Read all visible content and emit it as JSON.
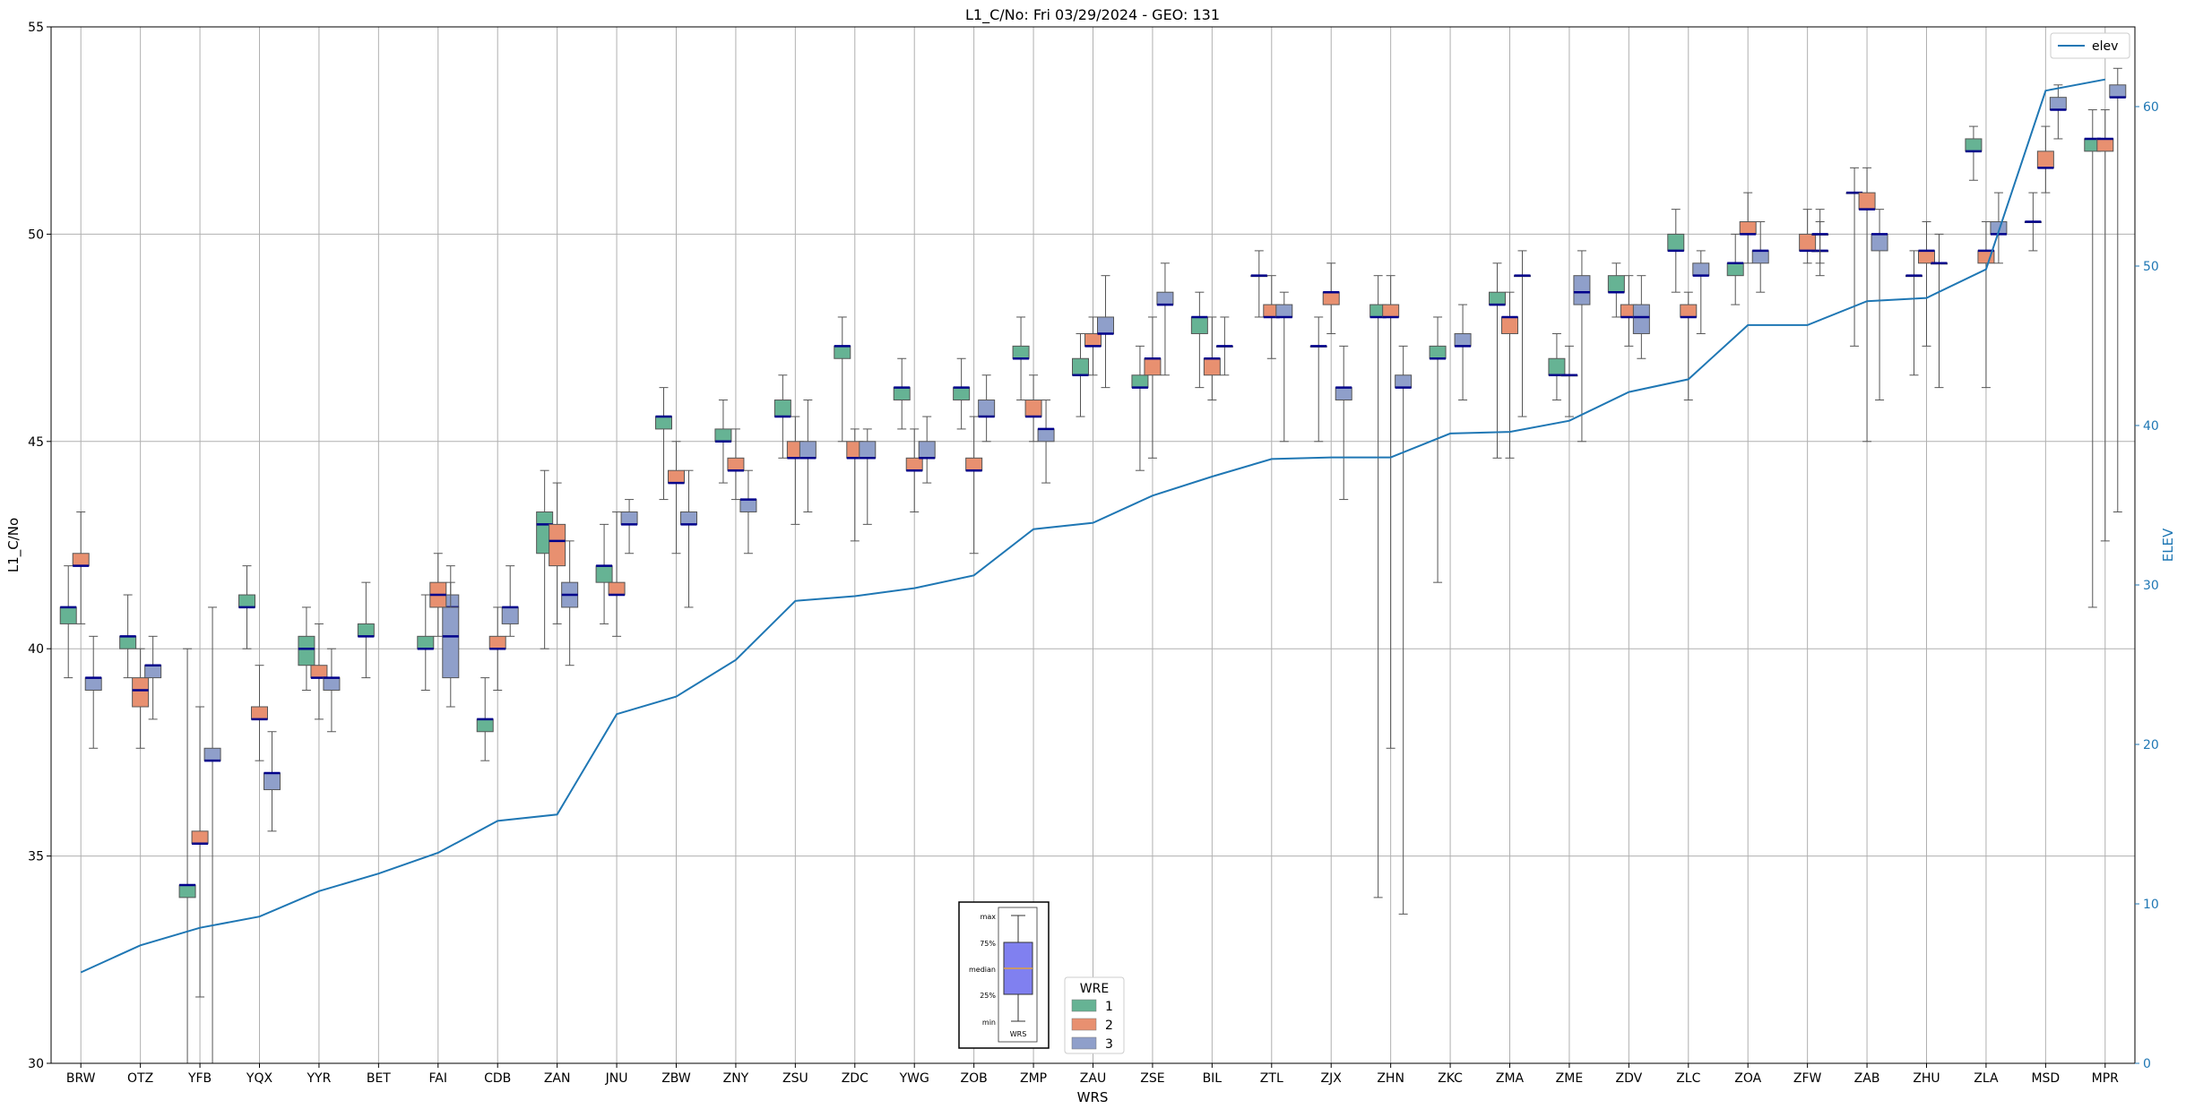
{
  "chart_data": {
    "type": "box",
    "title": "L1_C/No: Fri 03/29/2024 - GEO: 131",
    "xlabel": "WRS",
    "ylabel": "L1_C/No",
    "y2label": "ELEV",
    "ylim": [
      30,
      55
    ],
    "y2lim": [
      0,
      65
    ],
    "yticks": [
      30,
      35,
      40,
      45,
      50,
      55
    ],
    "y2ticks": [
      0,
      10,
      20,
      30,
      40,
      50,
      60
    ],
    "grid": true,
    "categories": [
      "BRW",
      "OTZ",
      "YFB",
      "YQX",
      "YYR",
      "BET",
      "FAI",
      "CDB",
      "ZAN",
      "JNU",
      "ZBW",
      "ZNY",
      "ZSU",
      "ZDC",
      "YWG",
      "ZOB",
      "ZMP",
      "ZAU",
      "ZSE",
      "BIL",
      "ZTL",
      "ZJX",
      "ZHN",
      "ZKC",
      "ZMA",
      "ZME",
      "ZDV",
      "ZLC",
      "ZOA",
      "ZFW",
      "ZAB",
      "ZHU",
      "ZLA",
      "MSD",
      "MPR"
    ],
    "wre_legend": {
      "title": "WRE",
      "entries": [
        {
          "label": "1",
          "color": "#66b394"
        },
        {
          "label": "2",
          "color": "#e89070"
        },
        {
          "label": "3",
          "color": "#8f9fca"
        }
      ]
    },
    "line_legend": {
      "label": "elev",
      "color": "#1f77b4"
    },
    "elev": [
      5.7,
      7.4,
      8.5,
      9.2,
      10.8,
      11.9,
      13.2,
      15.2,
      15.6,
      21.9,
      23.0,
      25.3,
      29.0,
      29.3,
      29.8,
      30.6,
      33.5,
      33.9,
      35.6,
      36.8,
      37.9,
      38.0,
      38.0,
      39.5,
      39.6,
      40.3,
      42.1,
      42.9,
      46.3,
      46.3,
      47.8,
      48.0,
      49.8,
      61.0,
      61.7
    ],
    "boxes": [
      {
        "cat": "BRW",
        "wre": 1,
        "min": 39.3,
        "q1": 40.6,
        "med": 41.0,
        "q3": 41.0,
        "max": 42.0
      },
      {
        "cat": "BRW",
        "wre": 2,
        "min": 40.6,
        "q1": 42.0,
        "med": 42.0,
        "q3": 42.3,
        "max": 43.3
      },
      {
        "cat": "BRW",
        "wre": 3,
        "min": 37.6,
        "q1": 39.0,
        "med": 39.3,
        "q3": 39.3,
        "max": 40.3
      },
      {
        "cat": "OTZ",
        "wre": 1,
        "min": 39.3,
        "q1": 40.0,
        "med": 40.3,
        "q3": 40.3,
        "max": 41.3
      },
      {
        "cat": "OTZ",
        "wre": 2,
        "min": 37.6,
        "q1": 38.6,
        "med": 39.0,
        "q3": 39.3,
        "max": 40.0
      },
      {
        "cat": "OTZ",
        "wre": 3,
        "min": 38.3,
        "q1": 39.3,
        "med": 39.6,
        "q3": 39.6,
        "max": 40.3
      },
      {
        "cat": "YFB",
        "wre": 1,
        "min": 30.0,
        "q1": 34.0,
        "med": 34.3,
        "q3": 34.3,
        "max": 40.0
      },
      {
        "cat": "YFB",
        "wre": 2,
        "min": 31.6,
        "q1": 35.3,
        "med": 35.3,
        "q3": 35.6,
        "max": 38.6
      },
      {
        "cat": "YFB",
        "wre": 3,
        "min": 30.0,
        "q1": 37.3,
        "med": 37.3,
        "q3": 37.6,
        "max": 41.0
      },
      {
        "cat": "YQX",
        "wre": 1,
        "min": 40.0,
        "q1": 41.0,
        "med": 41.0,
        "q3": 41.3,
        "max": 42.0
      },
      {
        "cat": "YQX",
        "wre": 2,
        "min": 37.3,
        "q1": 38.3,
        "med": 38.3,
        "q3": 38.6,
        "max": 39.6
      },
      {
        "cat": "YQX",
        "wre": 3,
        "min": 35.6,
        "q1": 36.6,
        "med": 37.0,
        "q3": 37.0,
        "max": 38.0
      },
      {
        "cat": "YYR",
        "wre": 1,
        "min": 39.0,
        "q1": 39.6,
        "med": 40.0,
        "q3": 40.3,
        "max": 41.0
      },
      {
        "cat": "YYR",
        "wre": 2,
        "min": 38.3,
        "q1": 39.3,
        "med": 39.3,
        "q3": 39.6,
        "max": 40.6
      },
      {
        "cat": "YYR",
        "wre": 3,
        "min": 38.0,
        "q1": 39.0,
        "med": 39.3,
        "q3": 39.3,
        "max": 40.0
      },
      {
        "cat": "BET",
        "wre": 1,
        "min": 39.3,
        "q1": 40.3,
        "med": 40.3,
        "q3": 40.6,
        "max": 41.6
      },
      {
        "cat": "FAI",
        "wre": 3,
        "min": 40.3,
        "q1": 41.0,
        "med": 41.0,
        "q3": 41.3,
        "max": 42.0
      },
      {
        "cat": "FAI",
        "wre": 1,
        "min": 39.0,
        "q1": 40.0,
        "med": 40.0,
        "q3": 40.3,
        "max": 41.3
      },
      {
        "cat": "FAI",
        "wre": 2,
        "min": 40.3,
        "q1": 41.0,
        "med": 41.3,
        "q3": 41.6,
        "max": 42.3
      },
      {
        "cat": "FAI",
        "wre": 3,
        "min": 38.6,
        "q1": 39.3,
        "med": 40.3,
        "q3": 41.0,
        "max": 41.6
      },
      {
        "cat": "CDB",
        "wre": 1,
        "min": 37.3,
        "q1": 38.0,
        "med": 38.3,
        "q3": 38.3,
        "max": 39.3
      },
      {
        "cat": "CDB",
        "wre": 2,
        "min": 39.0,
        "q1": 40.0,
        "med": 40.0,
        "q3": 40.3,
        "max": 41.0
      },
      {
        "cat": "CDB",
        "wre": 3,
        "min": 40.3,
        "q1": 40.6,
        "med": 41.0,
        "q3": 41.0,
        "max": 42.0
      },
      {
        "cat": "ZAN",
        "wre": 1,
        "min": 40.0,
        "q1": 42.3,
        "med": 43.0,
        "q3": 43.3,
        "max": 44.3
      },
      {
        "cat": "ZAN",
        "wre": 2,
        "min": 40.6,
        "q1": 42.0,
        "med": 42.6,
        "q3": 43.0,
        "max": 44.0
      },
      {
        "cat": "ZAN",
        "wre": 3,
        "min": 39.6,
        "q1": 41.0,
        "med": 41.3,
        "q3": 41.6,
        "max": 42.6
      },
      {
        "cat": "JNU",
        "wre": 1,
        "min": 40.6,
        "q1": 41.6,
        "med": 42.0,
        "q3": 42.0,
        "max": 43.0
      },
      {
        "cat": "JNU",
        "wre": 2,
        "min": 40.3,
        "q1": 41.3,
        "med": 41.3,
        "q3": 41.6,
        "max": 43.3
      },
      {
        "cat": "JNU",
        "wre": 3,
        "min": 42.3,
        "q1": 43.0,
        "med": 43.0,
        "q3": 43.3,
        "max": 43.6
      },
      {
        "cat": "ZBW",
        "wre": 1,
        "min": 43.6,
        "q1": 45.3,
        "med": 45.6,
        "q3": 45.6,
        "max": 46.3
      },
      {
        "cat": "ZBW",
        "wre": 2,
        "min": 42.3,
        "q1": 44.0,
        "med": 44.0,
        "q3": 44.3,
        "max": 45.0
      },
      {
        "cat": "ZBW",
        "wre": 3,
        "min": 41.0,
        "q1": 43.0,
        "med": 43.0,
        "q3": 43.3,
        "max": 44.3
      },
      {
        "cat": "ZNY",
        "wre": 1,
        "min": 44.0,
        "q1": 45.0,
        "med": 45.0,
        "q3": 45.3,
        "max": 46.0
      },
      {
        "cat": "ZNY",
        "wre": 2,
        "min": 43.6,
        "q1": 44.3,
        "med": 44.3,
        "q3": 44.6,
        "max": 45.3
      },
      {
        "cat": "ZNY",
        "wre": 3,
        "min": 42.3,
        "q1": 43.3,
        "med": 43.6,
        "q3": 43.6,
        "max": 44.3
      },
      {
        "cat": "ZSU",
        "wre": 1,
        "min": 44.6,
        "q1": 45.6,
        "med": 45.6,
        "q3": 46.0,
        "max": 46.6
      },
      {
        "cat": "ZSU",
        "wre": 2,
        "min": 43.0,
        "q1": 44.6,
        "med": 44.6,
        "q3": 45.0,
        "max": 45.6
      },
      {
        "cat": "ZSU",
        "wre": 3,
        "min": 43.3,
        "q1": 44.6,
        "med": 44.6,
        "q3": 45.0,
        "max": 46.0
      },
      {
        "cat": "ZDC",
        "wre": 1,
        "min": 45.0,
        "q1": 47.0,
        "med": 47.3,
        "q3": 47.3,
        "max": 48.0
      },
      {
        "cat": "ZDC",
        "wre": 2,
        "min": 42.6,
        "q1": 44.6,
        "med": 44.6,
        "q3": 45.0,
        "max": 45.3
      },
      {
        "cat": "ZDC",
        "wre": 3,
        "min": 43.0,
        "q1": 44.6,
        "med": 44.6,
        "q3": 45.0,
        "max": 45.3
      },
      {
        "cat": "YWG",
        "wre": 1,
        "min": 45.3,
        "q1": 46.0,
        "med": 46.3,
        "q3": 46.3,
        "max": 47.0
      },
      {
        "cat": "YWG",
        "wre": 2,
        "min": 43.3,
        "q1": 44.3,
        "med": 44.3,
        "q3": 44.6,
        "max": 45.3
      },
      {
        "cat": "YWG",
        "wre": 3,
        "min": 44.0,
        "q1": 44.6,
        "med": 44.6,
        "q3": 45.0,
        "max": 45.6
      },
      {
        "cat": "ZOB",
        "wre": 1,
        "min": 45.3,
        "q1": 46.0,
        "med": 46.3,
        "q3": 46.3,
        "max": 47.0
      },
      {
        "cat": "ZOB",
        "wre": 2,
        "min": 42.3,
        "q1": 44.3,
        "med": 44.3,
        "q3": 44.6,
        "max": 45.6
      },
      {
        "cat": "ZOB",
        "wre": 3,
        "min": 45.0,
        "q1": 45.6,
        "med": 45.6,
        "q3": 46.0,
        "max": 46.6
      },
      {
        "cat": "ZMP",
        "wre": 1,
        "min": 46.0,
        "q1": 47.0,
        "med": 47.0,
        "q3": 47.3,
        "max": 48.0
      },
      {
        "cat": "ZMP",
        "wre": 2,
        "min": 45.0,
        "q1": 45.6,
        "med": 45.6,
        "q3": 46.0,
        "max": 46.6
      },
      {
        "cat": "ZMP",
        "wre": 3,
        "min": 44.0,
        "q1": 45.0,
        "med": 45.3,
        "q3": 45.3,
        "max": 46.0
      },
      {
        "cat": "ZAU",
        "wre": 1,
        "min": 45.6,
        "q1": 46.6,
        "med": 46.6,
        "q3": 47.0,
        "max": 47.6
      },
      {
        "cat": "ZAU",
        "wre": 2,
        "min": 46.6,
        "q1": 47.3,
        "med": 47.3,
        "q3": 47.6,
        "max": 48.0
      },
      {
        "cat": "ZAU",
        "wre": 3,
        "min": 46.3,
        "q1": 47.6,
        "med": 47.6,
        "q3": 48.0,
        "max": 49.0
      },
      {
        "cat": "ZSE",
        "wre": 1,
        "min": 44.3,
        "q1": 46.3,
        "med": 46.3,
        "q3": 46.6,
        "max": 47.3
      },
      {
        "cat": "ZSE",
        "wre": 2,
        "min": 44.6,
        "q1": 46.6,
        "med": 47.0,
        "q3": 47.0,
        "max": 48.0
      },
      {
        "cat": "ZSE",
        "wre": 3,
        "min": 46.6,
        "q1": 48.3,
        "med": 48.3,
        "q3": 48.6,
        "max": 49.3
      },
      {
        "cat": "BIL",
        "wre": 1,
        "min": 46.3,
        "q1": 47.6,
        "med": 48.0,
        "q3": 48.0,
        "max": 48.6
      },
      {
        "cat": "BIL",
        "wre": 2,
        "min": 46.0,
        "q1": 46.6,
        "med": 47.0,
        "q3": 47.0,
        "max": 48.0
      },
      {
        "cat": "BIL",
        "wre": 3,
        "min": 46.6,
        "q1": 47.3,
        "med": 47.3,
        "q3": 47.3,
        "max": 48.0
      },
      {
        "cat": "ZTL",
        "wre": 1,
        "min": 48.0,
        "q1": 49.0,
        "med": 49.0,
        "q3": 49.0,
        "max": 49.6
      },
      {
        "cat": "ZTL",
        "wre": 2,
        "min": 47.0,
        "q1": 48.0,
        "med": 48.0,
        "q3": 48.3,
        "max": 49.0
      },
      {
        "cat": "ZTL",
        "wre": 3,
        "min": 45.0,
        "q1": 48.0,
        "med": 48.0,
        "q3": 48.3,
        "max": 48.6
      },
      {
        "cat": "ZJX",
        "wre": 1,
        "min": 45.0,
        "q1": 47.3,
        "med": 47.3,
        "q3": 47.3,
        "max": 48.0
      },
      {
        "cat": "ZJX",
        "wre": 2,
        "min": 47.6,
        "q1": 48.3,
        "med": 48.6,
        "q3": 48.6,
        "max": 49.3
      },
      {
        "cat": "ZJX",
        "wre": 3,
        "min": 43.6,
        "q1": 46.0,
        "med": 46.3,
        "q3": 46.3,
        "max": 47.3
      },
      {
        "cat": "ZHN",
        "wre": 1,
        "min": 34.0,
        "q1": 48.0,
        "med": 48.0,
        "q3": 48.3,
        "max": 49.0
      },
      {
        "cat": "ZHN",
        "wre": 2,
        "min": 37.6,
        "q1": 48.0,
        "med": 48.0,
        "q3": 48.3,
        "max": 49.0
      },
      {
        "cat": "ZHN",
        "wre": 3,
        "min": 33.6,
        "q1": 46.3,
        "med": 46.3,
        "q3": 46.6,
        "max": 47.3
      },
      {
        "cat": "ZKC",
        "wre": 1,
        "min": 41.6,
        "q1": 47.0,
        "med": 47.0,
        "q3": 47.3,
        "max": 48.0
      },
      {
        "cat": "ZKC",
        "wre": 3,
        "min": 46.0,
        "q1": 47.3,
        "med": 47.3,
        "q3": 47.6,
        "max": 48.3
      },
      {
        "cat": "ZMA",
        "wre": 1,
        "min": 44.6,
        "q1": 48.3,
        "med": 48.3,
        "q3": 48.6,
        "max": 49.3
      },
      {
        "cat": "ZMA",
        "wre": 2,
        "min": 44.6,
        "q1": 47.6,
        "med": 48.0,
        "q3": 48.0,
        "max": 48.6
      },
      {
        "cat": "ZMA",
        "wre": 3,
        "min": 45.6,
        "q1": 49.0,
        "med": 49.0,
        "q3": 49.0,
        "max": 49.6
      },
      {
        "cat": "ZME",
        "wre": 1,
        "min": 46.0,
        "q1": 46.6,
        "med": 46.6,
        "q3": 47.0,
        "max": 47.6
      },
      {
        "cat": "ZME",
        "wre": 2,
        "min": 45.6,
        "q1": 46.6,
        "med": 46.6,
        "q3": 46.6,
        "max": 47.3
      },
      {
        "cat": "ZME",
        "wre": 3,
        "min": 45.0,
        "q1": 48.3,
        "med": 48.6,
        "q3": 49.0,
        "max": 49.6
      },
      {
        "cat": "ZDV",
        "wre": 1,
        "min": 48.0,
        "q1": 48.6,
        "med": 48.6,
        "q3": 49.0,
        "max": 49.3
      },
      {
        "cat": "ZDV",
        "wre": 2,
        "min": 47.3,
        "q1": 48.0,
        "med": 48.0,
        "q3": 48.3,
        "max": 49.0
      },
      {
        "cat": "ZDV",
        "wre": 3,
        "min": 47.0,
        "q1": 47.6,
        "med": 48.0,
        "q3": 48.3,
        "max": 49.0
      },
      {
        "cat": "ZLC",
        "wre": 1,
        "min": 48.6,
        "q1": 49.6,
        "med": 49.6,
        "q3": 50.0,
        "max": 50.6
      },
      {
        "cat": "ZLC",
        "wre": 2,
        "min": 46.0,
        "q1": 48.0,
        "med": 48.0,
        "q3": 48.3,
        "max": 48.6
      },
      {
        "cat": "ZLC",
        "wre": 3,
        "min": 47.6,
        "q1": 49.0,
        "med": 49.0,
        "q3": 49.3,
        "max": 49.6
      },
      {
        "cat": "ZOA",
        "wre": 1,
        "min": 48.3,
        "q1": 49.0,
        "med": 49.3,
        "q3": 49.3,
        "max": 50.0
      },
      {
        "cat": "ZOA",
        "wre": 2,
        "min": 49.3,
        "q1": 50.0,
        "med": 50.0,
        "q3": 50.3,
        "max": 51.0
      },
      {
        "cat": "ZOA",
        "wre": 3,
        "min": 48.6,
        "q1": 49.3,
        "med": 49.6,
        "q3": 49.6,
        "max": 50.3
      },
      {
        "cat": "ZFW",
        "wre": 3,
        "min": 49.0,
        "q1": 49.6,
        "med": 49.6,
        "q3": 49.6,
        "max": 50.3
      },
      {
        "cat": "ZFW",
        "wre": 2,
        "min": 49.3,
        "q1": 49.6,
        "med": 49.6,
        "q3": 50.0,
        "max": 50.6
      },
      {
        "cat": "ZFW",
        "wre": 3,
        "min": 49.3,
        "q1": 50.0,
        "med": 50.0,
        "q3": 50.0,
        "max": 50.6
      },
      {
        "cat": "ZAB",
        "wre": 1,
        "min": 47.3,
        "q1": 51.0,
        "med": 51.0,
        "q3": 51.0,
        "max": 51.6
      },
      {
        "cat": "ZAB",
        "wre": 2,
        "min": 45.0,
        "q1": 50.6,
        "med": 50.6,
        "q3": 51.0,
        "max": 51.6
      },
      {
        "cat": "ZAB",
        "wre": 3,
        "min": 46.0,
        "q1": 49.6,
        "med": 50.0,
        "q3": 50.0,
        "max": 50.6
      },
      {
        "cat": "ZHU",
        "wre": 1,
        "min": 46.6,
        "q1": 49.0,
        "med": 49.0,
        "q3": 49.0,
        "max": 49.6
      },
      {
        "cat": "ZHU",
        "wre": 2,
        "min": 47.3,
        "q1": 49.3,
        "med": 49.6,
        "q3": 49.6,
        "max": 50.3
      },
      {
        "cat": "ZHU",
        "wre": 3,
        "min": 46.3,
        "q1": 49.3,
        "med": 49.3,
        "q3": 49.3,
        "max": 50.0
      },
      {
        "cat": "ZLA",
        "wre": 1,
        "min": 51.3,
        "q1": 52.0,
        "med": 52.0,
        "q3": 52.3,
        "max": 52.6
      },
      {
        "cat": "ZLA",
        "wre": 2,
        "min": 46.3,
        "q1": 49.3,
        "med": 49.6,
        "q3": 49.6,
        "max": 50.3
      },
      {
        "cat": "ZLA",
        "wre": 3,
        "min": 49.3,
        "q1": 50.0,
        "med": 50.0,
        "q3": 50.3,
        "max": 51.0
      },
      {
        "cat": "MSD",
        "wre": 1,
        "min": 49.6,
        "q1": 50.3,
        "med": 50.3,
        "q3": 50.3,
        "max": 51.0
      },
      {
        "cat": "MSD",
        "wre": 2,
        "min": 51.0,
        "q1": 51.6,
        "med": 51.6,
        "q3": 52.0,
        "max": 52.6
      },
      {
        "cat": "MSD",
        "wre": 3,
        "min": 52.3,
        "q1": 53.0,
        "med": 53.0,
        "q3": 53.3,
        "max": 53.6
      },
      {
        "cat": "MPR",
        "wre": 1,
        "min": 41.0,
        "q1": 52.0,
        "med": 52.3,
        "q3": 52.3,
        "max": 53.0
      },
      {
        "cat": "MPR",
        "wre": 2,
        "min": 42.6,
        "q1": 52.0,
        "med": 52.3,
        "q3": 52.3,
        "max": 53.0
      },
      {
        "cat": "MPR",
        "wre": 3,
        "min": 43.3,
        "q1": 53.3,
        "med": 53.3,
        "q3": 53.6,
        "max": 54.0
      }
    ],
    "inset": {
      "labels": [
        "max",
        "75%",
        "median",
        "25%",
        "min"
      ],
      "box_label": "WRS",
      "box_color": "#8080f0"
    }
  }
}
